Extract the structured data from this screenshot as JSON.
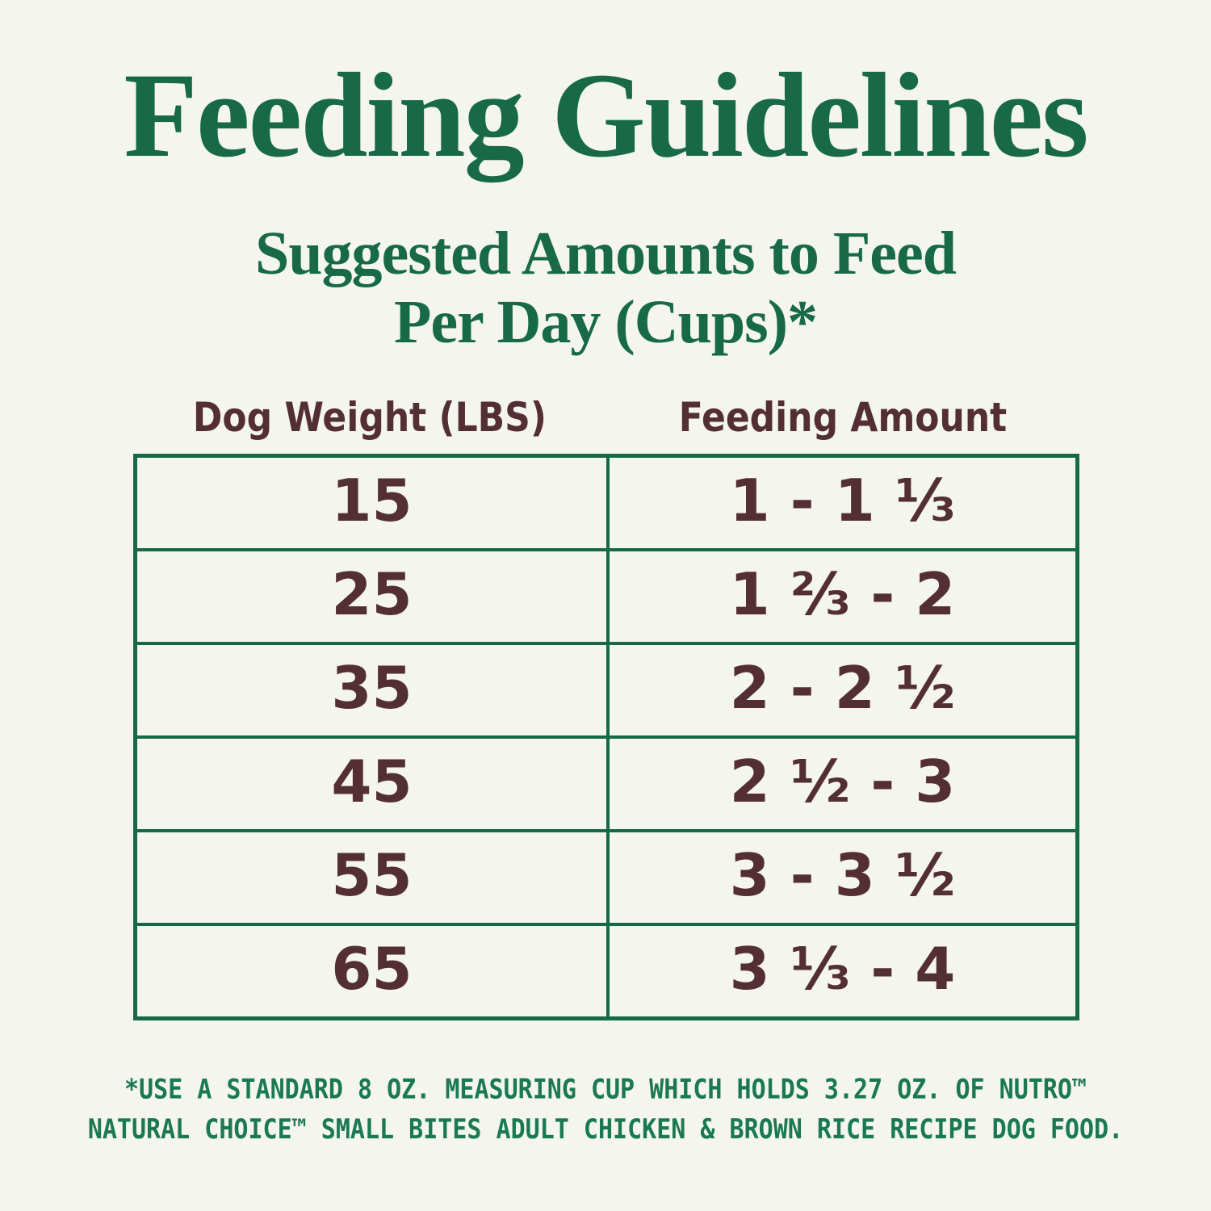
{
  "title": "Feeding Guidelines",
  "subtitle": {
    "line1": "Suggested Amounts to Feed",
    "line2": "Per Day (Cups)*"
  },
  "table": {
    "columns": [
      "Dog Weight (LBS)",
      "Feeding Amount"
    ],
    "rows": [
      {
        "weight": "15",
        "amount": "1 - 1 ⅓"
      },
      {
        "weight": "25",
        "amount": "1 ⅔ - 2"
      },
      {
        "weight": "35",
        "amount": "2 - 2 ½"
      },
      {
        "weight": "45",
        "amount": "2 ½ - 3"
      },
      {
        "weight": "55",
        "amount": "3 - 3 ½"
      },
      {
        "weight": "65",
        "amount": "3 ⅓ - 4"
      }
    ]
  },
  "footnote": {
    "line1": "*USE A STANDARD 8 OZ. MEASURING CUP WHICH HOLDS 3.27 OZ. OF NUTRO™",
    "line2": "NATURAL CHOICE™ SMALL BITES ADULT CHICKEN & BROWN RICE RECIPE DOG FOOD."
  },
  "colors": {
    "background": "#f3f5ee",
    "title_green": "#176a45",
    "border_green": "#156945",
    "footnote_green": "#1a7950",
    "text_maroon": "#532e33"
  },
  "chart_data": {
    "type": "table",
    "title": "Feeding Guidelines",
    "subtitle": "Suggested Amounts to Feed Per Day (Cups)*",
    "columns": [
      "Dog Weight (LBS)",
      "Feeding Amount"
    ],
    "rows": [
      [
        "15",
        "1 - 1 1/3"
      ],
      [
        "25",
        "1 2/3 - 2"
      ],
      [
        "35",
        "2 - 2 1/2"
      ],
      [
        "45",
        "2 1/2 - 3"
      ],
      [
        "55",
        "3 - 3 1/2"
      ],
      [
        "65",
        "3 1/3 - 4"
      ]
    ],
    "footnote": "*USE A STANDARD 8 OZ. MEASURING CUP WHICH HOLDS 3.27 OZ. OF NUTRO™ NATURAL CHOICE™ SMALL BITES ADULT CHICKEN & BROWN RICE RECIPE DOG FOOD."
  }
}
